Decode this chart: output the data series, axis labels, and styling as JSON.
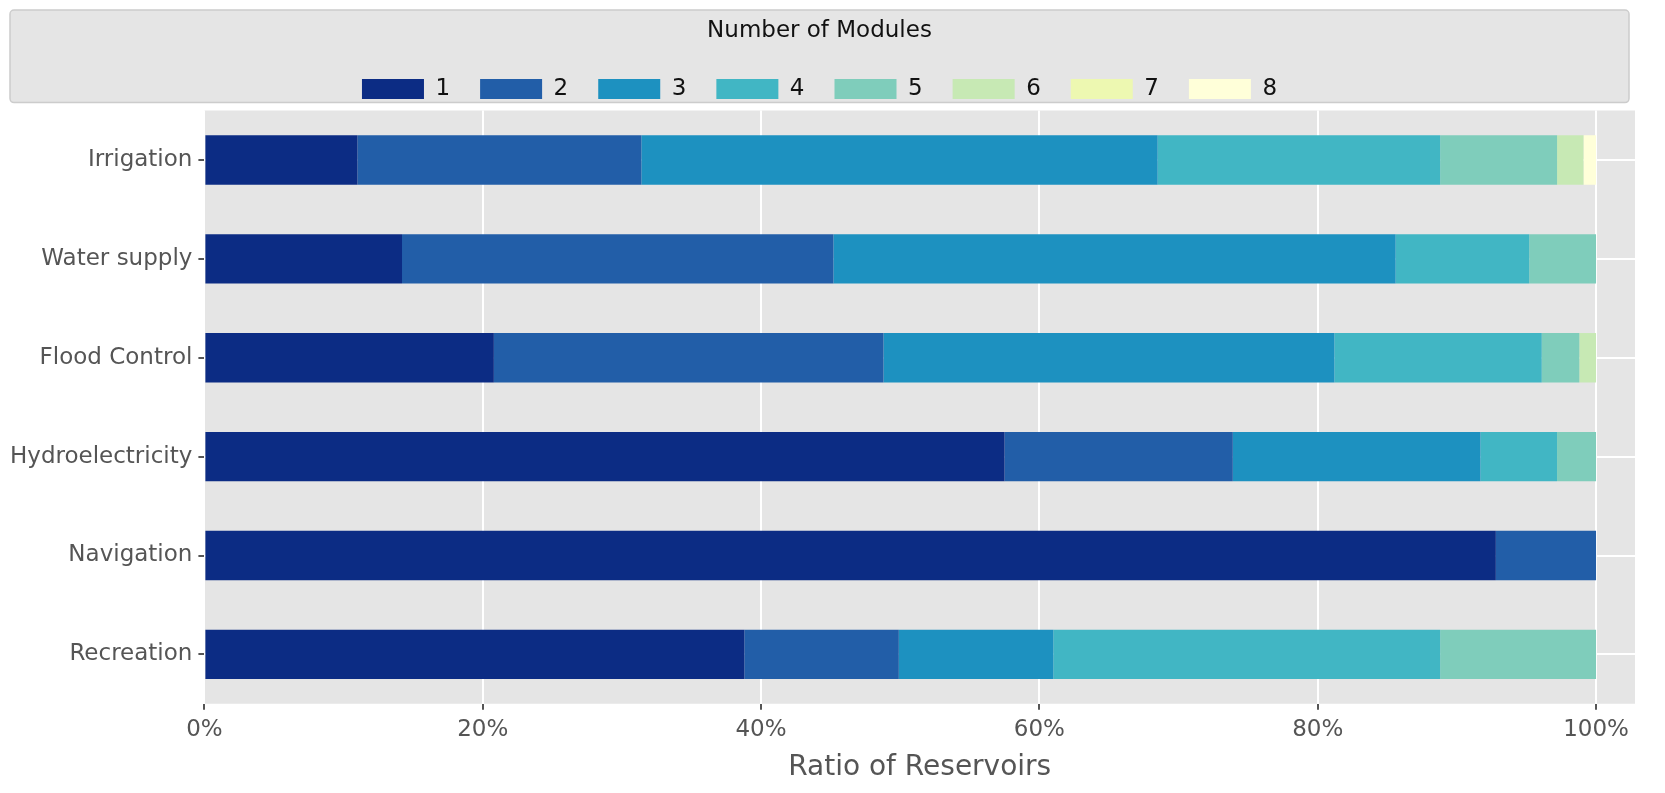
{
  "chart_data": {
    "type": "bar",
    "orientation": "horizontal",
    "stacked": true,
    "xlabel": "Ratio of Reservoirs",
    "legend_title": "Number of Modules",
    "legend": "top",
    "grid": true,
    "categories": [
      "Irrigation",
      "Water supply",
      "Flood Control",
      "Hydroelectricity",
      "Navigation",
      "Recreation"
    ],
    "series": [
      {
        "name": "1",
        "color": "#0c2c84",
        "values": [
          11.0,
          14.2,
          20.8,
          57.5,
          92.8,
          38.8
        ]
      },
      {
        "name": "2",
        "color": "#225ea8",
        "values": [
          20.4,
          31.0,
          28.0,
          16.4,
          7.2,
          11.1
        ]
      },
      {
        "name": "3",
        "color": "#1d91c0",
        "values": [
          37.1,
          40.4,
          32.4,
          17.8,
          null,
          11.1
        ]
      },
      {
        "name": "4",
        "color": "#41b6c4",
        "values": [
          20.3,
          9.6,
          14.9,
          5.5,
          null,
          27.8
        ]
      },
      {
        "name": "5",
        "color": "#7fcdbb",
        "values": [
          8.4,
          4.8,
          2.7,
          2.8,
          null,
          11.2
        ]
      },
      {
        "name": "6",
        "color": "#c7e9b4",
        "values": [
          1.9,
          null,
          1.2,
          null,
          null,
          null
        ]
      },
      {
        "name": "7",
        "color": "#edf8b1",
        "values": [
          null,
          null,
          null,
          null,
          null,
          null
        ]
      },
      {
        "name": "8",
        "color": "#ffffd9",
        "values": [
          0.9,
          null,
          null,
          null,
          null,
          null
        ]
      }
    ],
    "xlim": [
      0,
      102.8
    ],
    "xticks": [
      {
        "value": 0,
        "label": "0%"
      },
      {
        "value": 20,
        "label": "20%"
      },
      {
        "value": 40,
        "label": "40%"
      },
      {
        "value": 60,
        "label": "60%"
      },
      {
        "value": 80,
        "label": "80%"
      },
      {
        "value": 100,
        "label": "100%"
      }
    ]
  }
}
